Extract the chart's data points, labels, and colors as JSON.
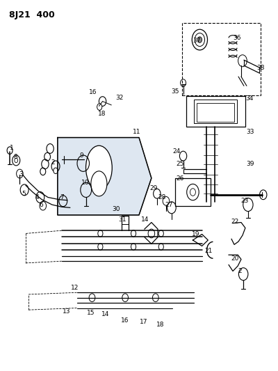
{
  "title": "8J21  400",
  "bg_color": "#ffffff",
  "line_color": "#000000",
  "fig_width": 4.0,
  "fig_height": 5.33,
  "dpi": 100
}
